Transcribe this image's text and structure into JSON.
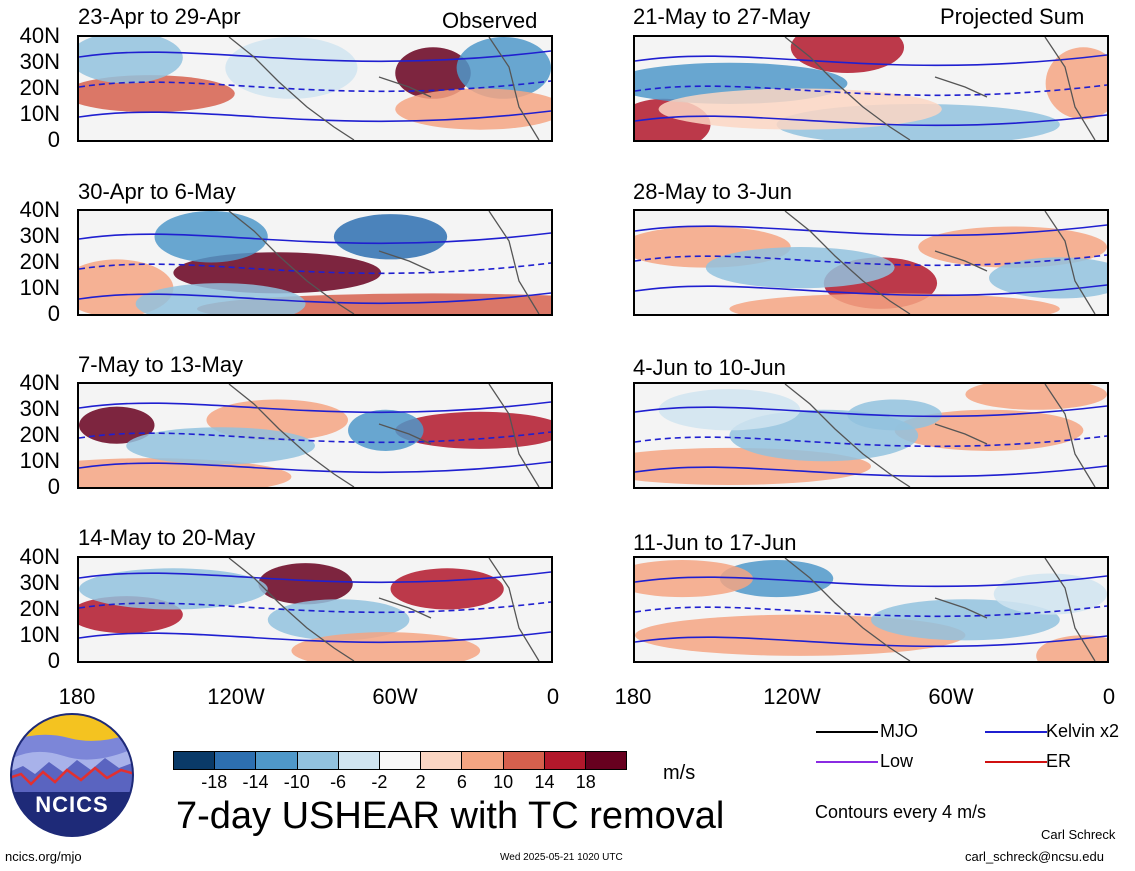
{
  "panels": [
    {
      "title": "23-Apr to 29-Apr",
      "tag": "Observed"
    },
    {
      "title": "21-May to 27-May",
      "tag": "Projected Sum"
    },
    {
      "title": "30-Apr to 6-May",
      "tag": ""
    },
    {
      "title": "28-May to 3-Jun",
      "tag": ""
    },
    {
      "title": "7-May to 13-May",
      "tag": ""
    },
    {
      "title": "4-Jun to 10-Jun",
      "tag": ""
    },
    {
      "title": "14-May to 20-May",
      "tag": ""
    },
    {
      "title": "11-Jun to 17-Jun",
      "tag": ""
    }
  ],
  "lat_labels": [
    "40N",
    "30N",
    "20N",
    "10N",
    "0"
  ],
  "lon_labels": [
    "180",
    "120W",
    "60W",
    "0"
  ],
  "colorbar": {
    "colors": [
      "#0a3a68",
      "#2d6fb0",
      "#4f98c9",
      "#92c2de",
      "#d0e4f0",
      "#f7f7f7",
      "#fbd6c3",
      "#f4a582",
      "#d6604d",
      "#b2182b",
      "#67001f"
    ],
    "labels": [
      "-18",
      "-14",
      "-10",
      "-6",
      "-2",
      "2",
      "6",
      "10",
      "14",
      "18"
    ],
    "units": "m/s"
  },
  "title": "7-day USHEAR with TC removal",
  "legend": [
    {
      "label": "MJO",
      "color": "#000000"
    },
    {
      "label": "Kelvin x2",
      "color": "#1f1fd0"
    },
    {
      "label": "Low",
      "color": "#8a2be2"
    },
    {
      "label": "ER",
      "color": "#d01010"
    }
  ],
  "contours_note": "Contours every 4 m/s",
  "author": "Carl Schreck",
  "email": "carl_schreck@ncsu.edu",
  "site": "ncics.org/mjo",
  "timestamp": "Wed 2025-05-21 1020 UTC",
  "logo_text": "NCICS"
}
